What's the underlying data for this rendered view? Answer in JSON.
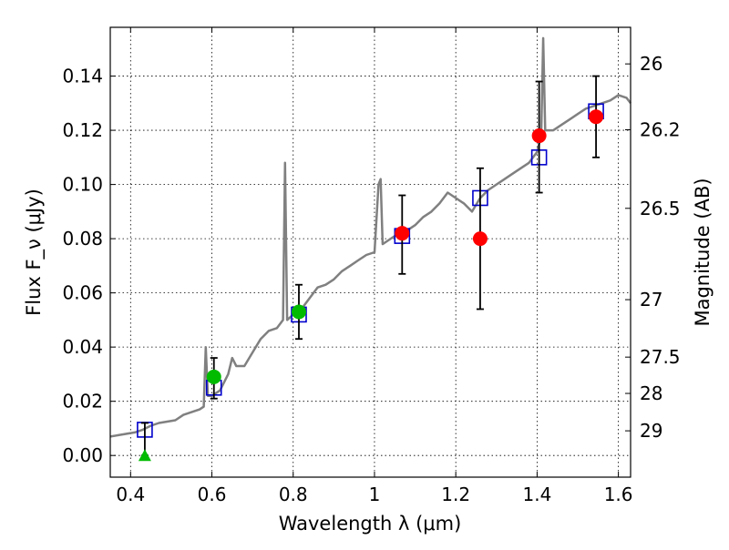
{
  "chart_data": {
    "type": "scatter",
    "xlabel": "Wavelength λ (μm)",
    "ylabel": "Flux F_ν (μJy)",
    "ylabel_right": "Magnitude (AB)",
    "xlim": [
      0.35,
      1.63
    ],
    "ylim": [
      -0.008,
      0.158
    ],
    "x_ticks": [
      0.4,
      0.6,
      0.8,
      1.0,
      1.2,
      1.4,
      1.6
    ],
    "x_tick_labels": [
      "0.4",
      "0.6",
      "0.8",
      "1",
      "1.2",
      "1.4",
      "1.6"
    ],
    "y_ticks": [
      0.0,
      0.02,
      0.04,
      0.06,
      0.08,
      0.1,
      0.12,
      0.14
    ],
    "y_tick_labels": [
      "0.00",
      "0.02",
      "0.04",
      "0.06",
      "0.08",
      "0.10",
      "0.12",
      "0.14"
    ],
    "right_ticks": [
      {
        "label": "26",
        "flux": 0.1445
      },
      {
        "label": "26.2",
        "flux": 0.1202
      },
      {
        "label": "26.5",
        "flux": 0.0912
      },
      {
        "label": "27",
        "flux": 0.0575
      },
      {
        "label": "27.5",
        "flux": 0.0363
      },
      {
        "label": "28",
        "flux": 0.0229
      },
      {
        "label": "29",
        "flux": 0.0091
      }
    ],
    "grid": true,
    "colors": {
      "model": "#808080",
      "model_points": "#0000cc",
      "detections": "#ff0000",
      "optical": "#00bb00",
      "errorbars": "#000000"
    },
    "model_spectrum": [
      [
        0.35,
        0.007
      ],
      [
        0.37,
        0.0075
      ],
      [
        0.39,
        0.008
      ],
      [
        0.41,
        0.0085
      ],
      [
        0.43,
        0.0095
      ],
      [
        0.45,
        0.011
      ],
      [
        0.47,
        0.012
      ],
      [
        0.49,
        0.0125
      ],
      [
        0.51,
        0.013
      ],
      [
        0.53,
        0.015
      ],
      [
        0.55,
        0.016
      ],
      [
        0.57,
        0.017
      ],
      [
        0.58,
        0.018
      ],
      [
        0.585,
        0.04
      ],
      [
        0.59,
        0.022
      ],
      [
        0.6,
        0.022
      ],
      [
        0.62,
        0.024
      ],
      [
        0.64,
        0.03
      ],
      [
        0.65,
        0.036
      ],
      [
        0.66,
        0.033
      ],
      [
        0.68,
        0.033
      ],
      [
        0.7,
        0.038
      ],
      [
        0.72,
        0.043
      ],
      [
        0.74,
        0.046
      ],
      [
        0.76,
        0.047
      ],
      [
        0.775,
        0.05
      ],
      [
        0.78,
        0.108
      ],
      [
        0.785,
        0.05
      ],
      [
        0.8,
        0.052
      ],
      [
        0.82,
        0.054
      ],
      [
        0.84,
        0.058
      ],
      [
        0.86,
        0.062
      ],
      [
        0.88,
        0.063
      ],
      [
        0.9,
        0.065
      ],
      [
        0.92,
        0.068
      ],
      [
        0.94,
        0.07
      ],
      [
        0.96,
        0.072
      ],
      [
        0.98,
        0.074
      ],
      [
        1.0,
        0.075
      ],
      [
        1.01,
        0.1
      ],
      [
        1.015,
        0.102
      ],
      [
        1.02,
        0.078
      ],
      [
        1.04,
        0.08
      ],
      [
        1.06,
        0.082
      ],
      [
        1.08,
        0.083
      ],
      [
        1.1,
        0.085
      ],
      [
        1.12,
        0.088
      ],
      [
        1.14,
        0.09
      ],
      [
        1.16,
        0.093
      ],
      [
        1.18,
        0.097
      ],
      [
        1.2,
        0.095
      ],
      [
        1.22,
        0.093
      ],
      [
        1.24,
        0.09
      ],
      [
        1.26,
        0.095
      ],
      [
        1.28,
        0.098
      ],
      [
        1.3,
        0.1
      ],
      [
        1.32,
        0.102
      ],
      [
        1.34,
        0.104
      ],
      [
        1.36,
        0.106
      ],
      [
        1.38,
        0.108
      ],
      [
        1.4,
        0.112
      ],
      [
        1.41,
        0.118
      ],
      [
        1.415,
        0.154
      ],
      [
        1.42,
        0.12
      ],
      [
        1.44,
        0.12
      ],
      [
        1.46,
        0.122
      ],
      [
        1.48,
        0.124
      ],
      [
        1.5,
        0.126
      ],
      [
        1.52,
        0.128
      ],
      [
        1.54,
        0.129
      ],
      [
        1.56,
        0.13
      ],
      [
        1.58,
        0.131
      ],
      [
        1.6,
        0.133
      ],
      [
        1.62,
        0.132
      ],
      [
        1.63,
        0.13
      ]
    ],
    "model_points": [
      {
        "x": 0.435,
        "y": 0.0095
      },
      {
        "x": 0.605,
        "y": 0.025
      },
      {
        "x": 0.814,
        "y": 0.052
      },
      {
        "x": 1.068,
        "y": 0.081
      },
      {
        "x": 1.26,
        "y": 0.095
      },
      {
        "x": 1.405,
        "y": 0.11
      },
      {
        "x": 1.545,
        "y": 0.127
      }
    ],
    "optical_points": [
      {
        "x": 0.605,
        "y": 0.029,
        "err": [
          0.021,
          0.036
        ]
      },
      {
        "x": 0.814,
        "y": 0.053,
        "err": [
          0.043,
          0.063
        ]
      }
    ],
    "optical_upper_limit": {
      "x": 0.435,
      "y": 0.0,
      "err": [
        0.0,
        0.012
      ]
    },
    "ir_points": [
      {
        "x": 1.068,
        "y": 0.082,
        "err": [
          0.067,
          0.096
        ]
      },
      {
        "x": 1.26,
        "y": 0.08,
        "err": [
          0.054,
          0.106
        ]
      },
      {
        "x": 1.405,
        "y": 0.118,
        "err": [
          0.097,
          0.138
        ]
      },
      {
        "x": 1.545,
        "y": 0.125,
        "err": [
          0.11,
          0.14
        ]
      }
    ]
  }
}
